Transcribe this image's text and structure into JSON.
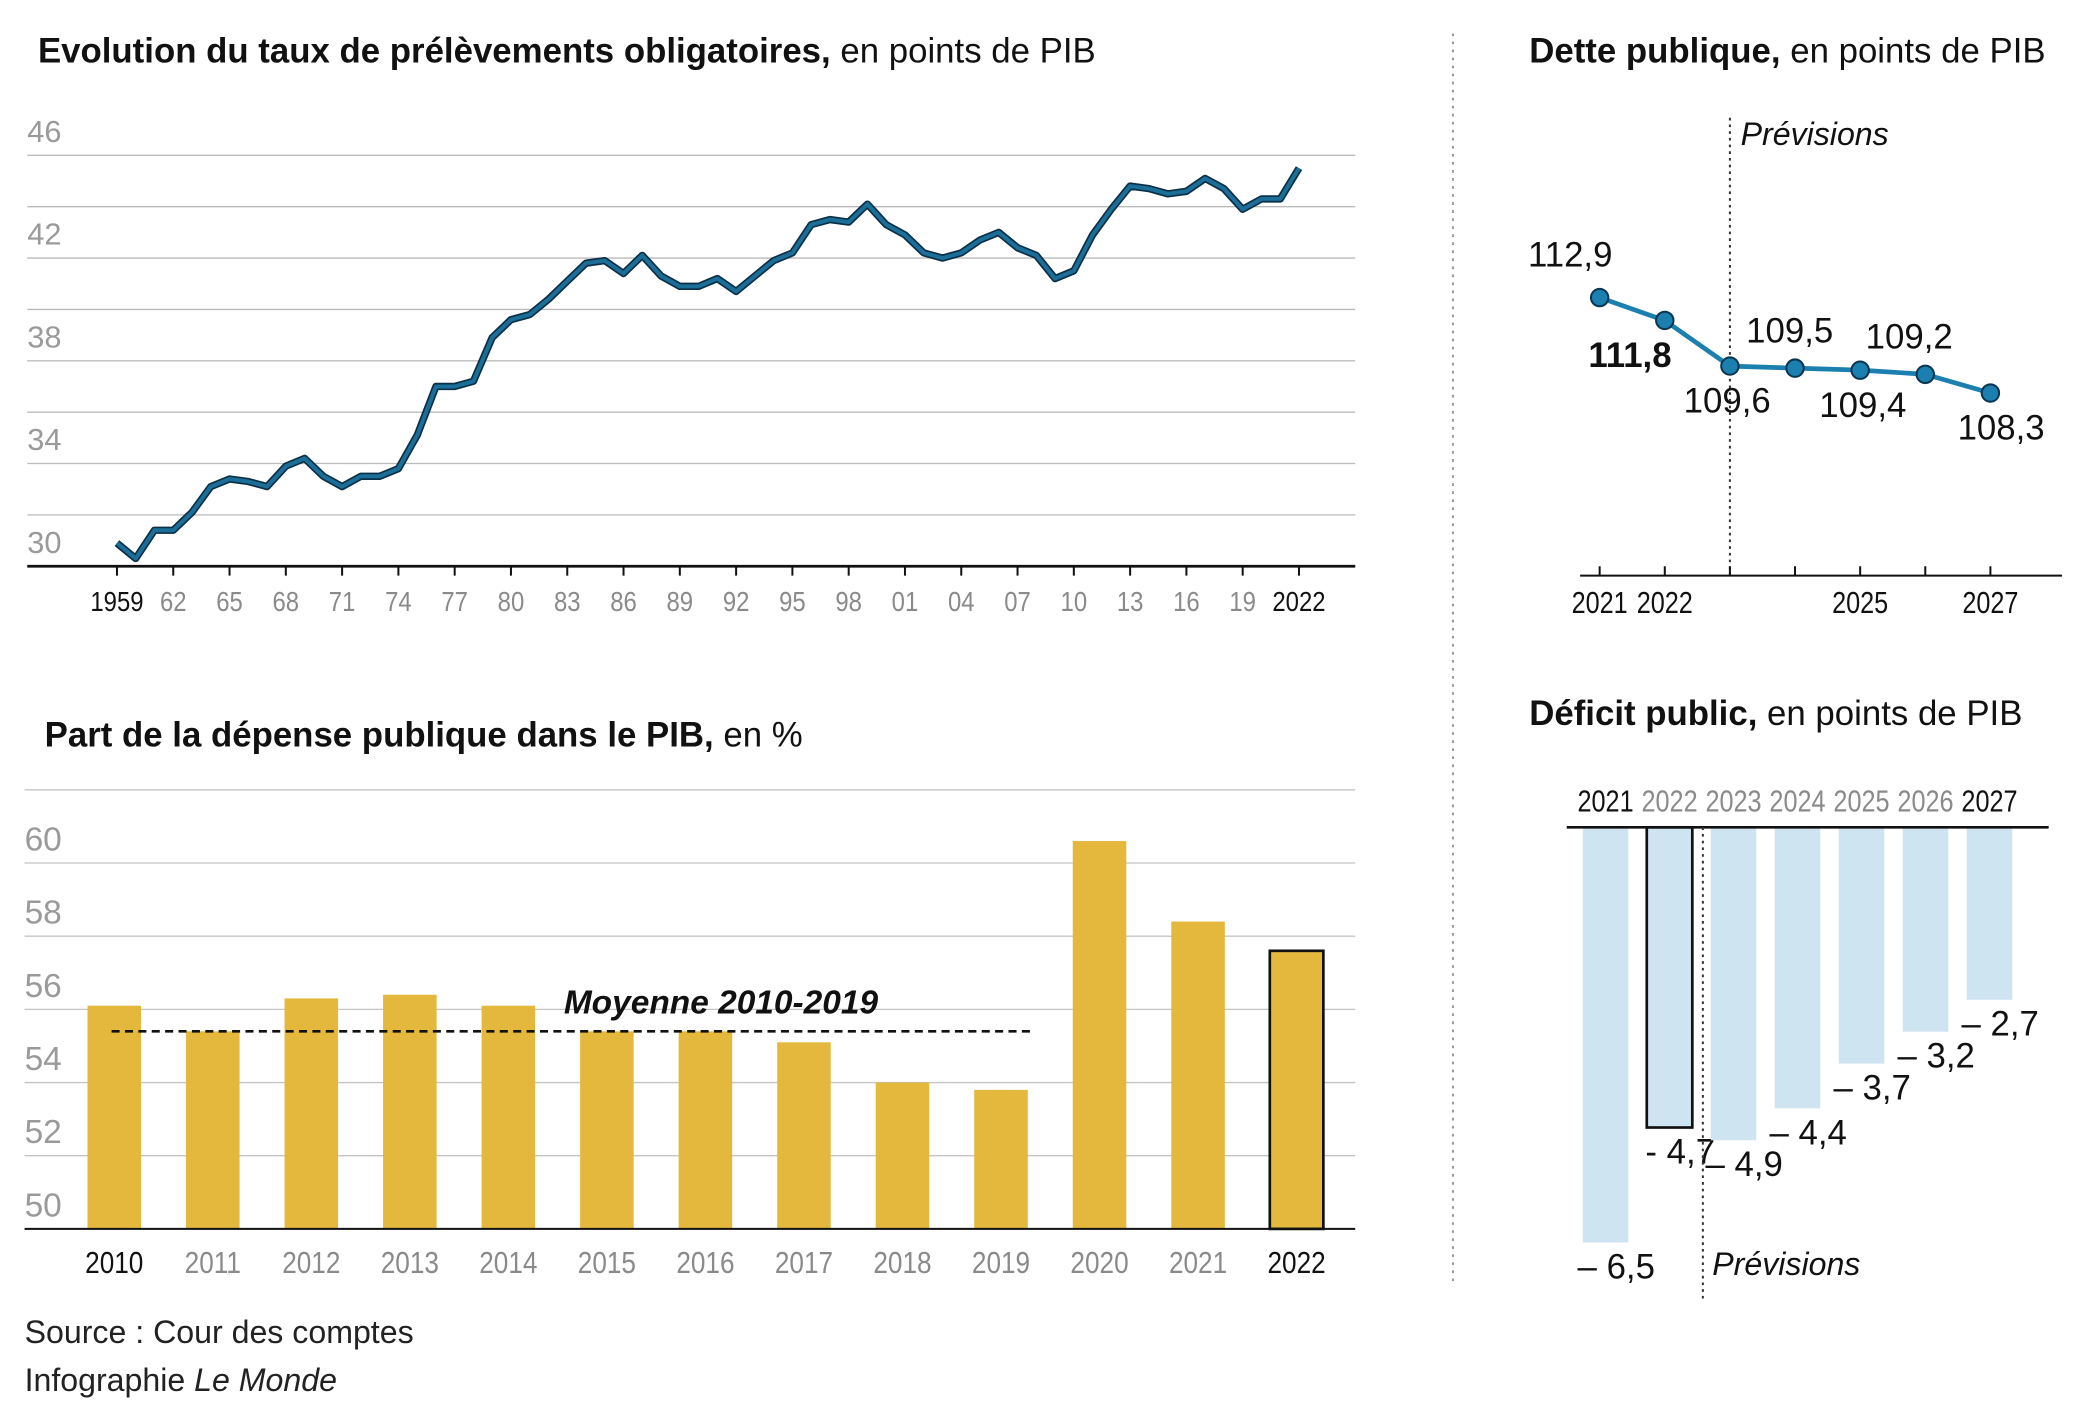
{
  "chart_data": [
    {
      "type": "line",
      "title": "Evolution du taux de prélèvements obligatoires,",
      "subtitle": " en points de PIB",
      "color": "#1b6e98",
      "x": [
        1959,
        1960,
        1961,
        1962,
        1963,
        1964,
        1965,
        1966,
        1967,
        1968,
        1969,
        1970,
        1971,
        1972,
        1973,
        1974,
        1975,
        1976,
        1977,
        1978,
        1979,
        1980,
        1981,
        1982,
        1983,
        1984,
        1985,
        1986,
        1987,
        1988,
        1989,
        1990,
        1991,
        1992,
        1993,
        1994,
        1995,
        1996,
        1997,
        1998,
        1999,
        2000,
        2001,
        2002,
        2003,
        2004,
        2005,
        2006,
        2007,
        2008,
        2009,
        2010,
        2011,
        2012,
        2013,
        2014,
        2015,
        2016,
        2017,
        2018,
        2019,
        2020,
        2021,
        2022
      ],
      "values": [
        30.9,
        30.3,
        31.4,
        31.4,
        32.1,
        33.1,
        33.4,
        33.3,
        33.1,
        33.9,
        34.2,
        33.5,
        33.1,
        33.5,
        33.5,
        33.8,
        35.1,
        37.0,
        37.0,
        37.2,
        38.9,
        39.6,
        39.8,
        40.4,
        41.1,
        41.8,
        41.9,
        41.4,
        42.1,
        41.3,
        40.9,
        40.9,
        41.2,
        40.7,
        41.3,
        41.9,
        42.2,
        43.3,
        43.5,
        43.4,
        44.1,
        43.3,
        42.9,
        42.2,
        42.0,
        42.2,
        42.7,
        43.0,
        42.4,
        42.1,
        41.2,
        41.5,
        42.9,
        43.9,
        44.8,
        44.7,
        44.5,
        44.6,
        45.1,
        44.7,
        43.9,
        44.3,
        44.3,
        45.5
      ],
      "xlim": [
        1958,
        2023
      ],
      "xticks": [
        1959,
        {
          "value": 1962,
          "label": "62"
        },
        {
          "value": 1965,
          "label": "65"
        },
        {
          "value": 1968,
          "label": "68"
        },
        {
          "value": 1971,
          "label": "71"
        },
        {
          "value": 1974,
          "label": "74"
        },
        {
          "value": 1977,
          "label": "77"
        },
        {
          "value": 1980,
          "label": "80"
        },
        {
          "value": 1983,
          "label": "83"
        },
        {
          "value": 1986,
          "label": "86"
        },
        {
          "value": 1989,
          "label": "89"
        },
        {
          "value": 1992,
          "label": "92"
        },
        {
          "value": 1995,
          "label": "95"
        },
        {
          "value": 1998,
          "label": "98"
        },
        {
          "value": 2001,
          "label": "01"
        },
        {
          "value": 2004,
          "label": "04"
        },
        {
          "value": 2007,
          "label": "07"
        },
        {
          "value": 2010,
          "label": "10"
        },
        {
          "value": 2013,
          "label": "13"
        },
        {
          "value": 2016,
          "label": "16"
        },
        {
          "value": 2019,
          "label": "19"
        },
        2022
      ],
      "ylim": [
        30,
        46
      ],
      "yticks": [
        30,
        34,
        38,
        42,
        46
      ],
      "grid_yticks": [
        30,
        32,
        34,
        36,
        38,
        40,
        42,
        44,
        46
      ],
      "grid": true
    },
    {
      "type": "bar",
      "title": "Part de la dépense publique dans le PIB,",
      "subtitle": " en %",
      "color": "#e3b83d",
      "categories": [
        "2010",
        "2011",
        "2012",
        "2013",
        "2014",
        "2015",
        "2016",
        "2017",
        "2018",
        "2019",
        "2020",
        "2021",
        "2022"
      ],
      "values": [
        56.1,
        55.4,
        56.3,
        56.4,
        56.1,
        55.4,
        55.4,
        55.1,
        54.0,
        53.8,
        60.6,
        58.4,
        57.6
      ],
      "highlight_category": "2022",
      "average": {
        "label": "Moyenne 2010-2019",
        "value": 55.4,
        "from": "2010",
        "to": "2019"
      },
      "ylim": [
        50,
        62
      ],
      "yticks": [
        50,
        52,
        54,
        56,
        58,
        60
      ],
      "grid": true
    },
    {
      "type": "line",
      "title": "Dette publique,",
      "subtitle": " en points de PIB",
      "color": "#1b7fb0",
      "x": [
        2021,
        2022,
        2023,
        2024,
        2025,
        2026,
        2027
      ],
      "values": [
        112.9,
        111.8,
        109.6,
        109.5,
        109.4,
        109.2,
        108.3
      ],
      "value_labels": [
        "112,9",
        "111,8",
        "109,6",
        "109,5",
        "109,4",
        "109,2",
        "108,3"
      ],
      "highlight_x": 2022,
      "forecast_start": 2023,
      "forecast_label": "Prévisions",
      "xlim": [
        2020.7,
        2028.1
      ],
      "xticks": [
        2021,
        2022,
        2025,
        2027
      ],
      "minor_xticks": [
        2023,
        2024,
        2026
      ],
      "ylim": [
        99.5,
        119.5
      ]
    },
    {
      "type": "bar",
      "title": "Déficit public,",
      "subtitle": " en points de PIB",
      "color": "#cfe4f1",
      "categories": [
        "2021",
        "2022",
        "2023",
        "2024",
        "2025",
        "2026",
        "2027"
      ],
      "values": [
        -6.5,
        -4.7,
        -4.9,
        -4.4,
        -3.7,
        -3.2,
        -2.7
      ],
      "value_labels": [
        "– 6,5",
        "- 4,7",
        "– 4,9",
        "– 4,4",
        "– 3,7",
        "– 3,2",
        "– 2,7"
      ],
      "highlight_category": "2022",
      "forecast_start": "2023",
      "forecast_label": "Prévisions",
      "ylim": [
        -7,
        0
      ]
    }
  ],
  "footer": {
    "source": "Source : Cour des comptes",
    "credit": "Infographie ",
    "credit_italic": "Le Monde"
  }
}
